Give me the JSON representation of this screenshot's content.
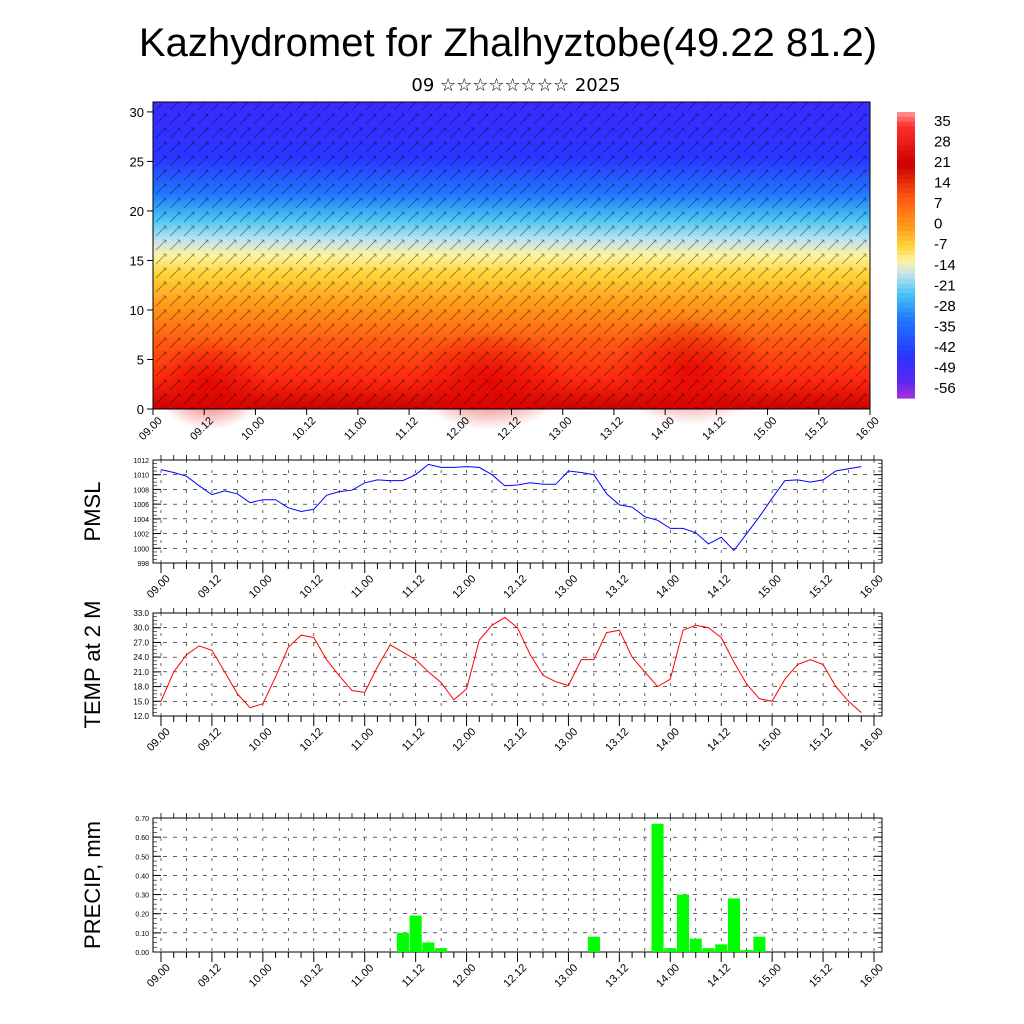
{
  "page": {
    "title": "Kazhydromet for Zhalhyztobe(49.22 81.2)",
    "subtitle": "09 ☆☆☆☆☆☆☆☆ 2025"
  },
  "chart_data": [
    {
      "type": "heatmap",
      "title": "",
      "xlabel": "",
      "ylabel": "",
      "x_tick_labels": [
        "09.00",
        "09.12",
        "10.00",
        "10.12",
        "11.00",
        "11.12",
        "12.00",
        "12.12",
        "13.00",
        "13.12",
        "14.00",
        "14.12",
        "15.00",
        "15.12",
        "16.00"
      ],
      "y_ticks": [
        0,
        5,
        10,
        15,
        20,
        25,
        30
      ],
      "ylim": [
        0,
        31
      ],
      "colorbar": {
        "tick_labels": [
          "35",
          "28",
          "21",
          "14",
          "7",
          "0",
          "-7",
          "-14",
          "-21",
          "-28",
          "-35",
          "-42",
          "-49",
          "-56"
        ],
        "range": [
          -60,
          38
        ],
        "colors": [
          "#7a1cd9",
          "#2a2bff",
          "#1f78ff",
          "#19b9f5",
          "#bfe3f2",
          "#ffef5e",
          "#ffc21f",
          "#ff8a1a",
          "#ff3a1a",
          "#d41010",
          "#ff8080"
        ]
      },
      "field_description_values": {
        "surface_temperature_range": [
          14,
          28
        ],
        "temperature_at_top_km": -56
      },
      "overlay": "wind barbs"
    },
    {
      "type": "line",
      "ylabel": "PMSL",
      "ylim": [
        998,
        1012
      ],
      "y_ticks": [
        "998",
        "1000",
        "1002",
        "1004",
        "1006",
        "1008",
        "1010",
        "1012"
      ],
      "x_tick_labels": [
        "09.00",
        "09.12",
        "10.00",
        "10.12",
        "11.00",
        "11.12",
        "12.00",
        "12.12",
        "13.00",
        "13.12",
        "14.00",
        "14.12",
        "15.00",
        "15.12",
        "16.00"
      ],
      "color": "#0000ff",
      "x": [
        0,
        3,
        6,
        9,
        12,
        15,
        18,
        21,
        24,
        27,
        30,
        33,
        36,
        39,
        42,
        45,
        48,
        51,
        54,
        57,
        60,
        63,
        66,
        69,
        72,
        75,
        78,
        81,
        84,
        87,
        90,
        93,
        96,
        99,
        102,
        105,
        108,
        111,
        114,
        117,
        120,
        123,
        126,
        129,
        132,
        135,
        138,
        141,
        144,
        147,
        150,
        153,
        156,
        159,
        162,
        165
      ],
      "values": [
        1010.7,
        1010.3,
        1009.8,
        1008.5,
        1007.3,
        1007.8,
        1007.4,
        1006.2,
        1006.6,
        1006.6,
        1005.5,
        1005,
        1005.3,
        1007.2,
        1007.7,
        1007.9,
        1008.9,
        1009.3,
        1009.2,
        1009.2,
        1010,
        1011.4,
        1011,
        1011,
        1011.1,
        1011,
        1010,
        1008.5,
        1008.6,
        1008.9,
        1008.7,
        1008.7,
        1010.5,
        1010.3,
        1010,
        1007.4,
        1005.9,
        1005.6,
        1004.3,
        1003.8,
        1002.7,
        1002.7,
        1002.1,
        1000.6,
        1001.5,
        999.7,
        1002,
        1004.3,
        1006.8,
        1009.2,
        1009.3,
        1009,
        1009.3,
        1010.5,
        1010.8,
        1011.1
      ]
    },
    {
      "type": "line",
      "ylabel": "TEMP at 2 M",
      "ylim": [
        12,
        33
      ],
      "y_ticks": [
        "12.0",
        "15.0",
        "18.0",
        "21.0",
        "24.0",
        "27.0",
        "30.0",
        "33.0"
      ],
      "x_tick_labels": [
        "09.00",
        "09.12",
        "10.00",
        "10.12",
        "11.00",
        "11.12",
        "12.00",
        "12.12",
        "13.00",
        "13.12",
        "14.00",
        "14.12",
        "15.00",
        "15.12",
        "16.00"
      ],
      "color": "#ff0000",
      "x": [
        0,
        3,
        6,
        9,
        12,
        15,
        18,
        21,
        24,
        27,
        30,
        33,
        36,
        39,
        42,
        45,
        48,
        51,
        54,
        57,
        60,
        63,
        66,
        69,
        72,
        75,
        78,
        81,
        84,
        87,
        90,
        93,
        96,
        99,
        102,
        105,
        108,
        111,
        114,
        117,
        120,
        123,
        126,
        129,
        132,
        135,
        138,
        141,
        144,
        147,
        150,
        153,
        156,
        159,
        162,
        165
      ],
      "values": [
        15,
        21,
        24.5,
        26.3,
        25.4,
        21,
        16.5,
        13.7,
        14.5,
        20,
        26,
        28.5,
        28,
        23.5,
        20.2,
        17.2,
        16.8,
        22,
        26.5,
        25,
        23.5,
        21,
        18.8,
        15.3,
        17.5,
        27.5,
        30.5,
        32.1,
        30,
        24.5,
        20.3,
        19,
        18.2,
        23.5,
        23.5,
        29,
        29.5,
        24,
        21,
        18,
        19.5,
        29.5,
        30.5,
        30,
        28,
        23,
        18.5,
        15.5,
        15,
        19.5,
        22.5,
        23.5,
        22.5,
        18,
        15,
        12.7
      ]
    },
    {
      "type": "bar",
      "ylabel": "PRECIP, mm",
      "ylim": [
        0,
        0.7
      ],
      "y_ticks": [
        "0.00",
        "0.10",
        "0.20",
        "0.30",
        "0.40",
        "0.50",
        "0.60",
        "0.70"
      ],
      "x_tick_labels": [
        "09.00",
        "09.12",
        "10.00",
        "10.12",
        "11.00",
        "11.12",
        "12.00",
        "12.12",
        "13.00",
        "13.12",
        "14.00",
        "14.12",
        "15.00",
        "15.12",
        "16.00"
      ],
      "color": "#00ff00",
      "x": [
        57,
        60,
        63,
        66,
        102,
        117,
        120,
        123,
        126,
        129,
        132,
        135,
        138,
        141,
        144
      ],
      "values": [
        0.1,
        0.19,
        0.05,
        0.02,
        0.08,
        0.67,
        0.02,
        0.3,
        0.07,
        0.02,
        0.04,
        0.28,
        0.01,
        0.08,
        0.0
      ]
    }
  ]
}
